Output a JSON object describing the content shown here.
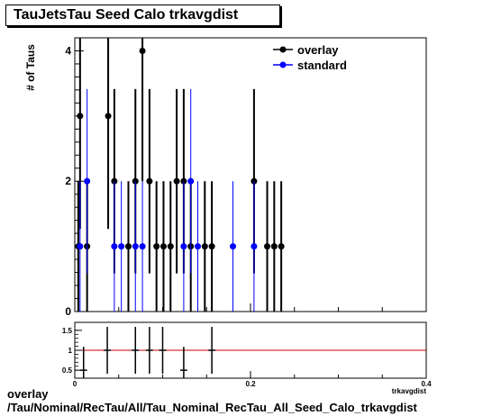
{
  "chart_data": {
    "type": "scatter",
    "title": "TauJetsTau Seed Calo trkavgdist",
    "ylabel": "# of Taus",
    "xlabel": "trkavgdist",
    "xlim": [
      0,
      0.4
    ],
    "ylim": [
      0,
      4.2
    ],
    "x_ticks": [
      "0",
      "0.2",
      "0.4"
    ],
    "y_ticks": [
      "0",
      "2",
      "4"
    ],
    "legend_position": "top-right",
    "series": [
      {
        "name": "overlay",
        "color": "#000000",
        "points": [
          {
            "x": 0.004,
            "y": 1
          },
          {
            "x": 0.006,
            "y": 3
          },
          {
            "x": 0.014,
            "y": 1
          },
          {
            "x": 0.038,
            "y": 3
          },
          {
            "x": 0.045,
            "y": 2
          },
          {
            "x": 0.061,
            "y": 1
          },
          {
            "x": 0.069,
            "y": 2
          },
          {
            "x": 0.077,
            "y": 4
          },
          {
            "x": 0.085,
            "y": 2
          },
          {
            "x": 0.093,
            "y": 1
          },
          {
            "x": 0.101,
            "y": 1
          },
          {
            "x": 0.109,
            "y": 1
          },
          {
            "x": 0.116,
            "y": 2
          },
          {
            "x": 0.124,
            "y": 2
          },
          {
            "x": 0.132,
            "y": 1
          },
          {
            "x": 0.148,
            "y": 1
          },
          {
            "x": 0.156,
            "y": 1
          },
          {
            "x": 0.204,
            "y": 2
          },
          {
            "x": 0.219,
            "y": 1
          },
          {
            "x": 0.227,
            "y": 1
          },
          {
            "x": 0.235,
            "y": 1
          }
        ]
      },
      {
        "name": "standard",
        "color": "#0000ff",
        "points": [
          {
            "x": 0.006,
            "y": 1
          },
          {
            "x": 0.014,
            "y": 2
          },
          {
            "x": 0.045,
            "y": 1
          },
          {
            "x": 0.053,
            "y": 1
          },
          {
            "x": 0.069,
            "y": 1
          },
          {
            "x": 0.077,
            "y": 1
          },
          {
            "x": 0.124,
            "y": 1
          },
          {
            "x": 0.132,
            "y": 2
          },
          {
            "x": 0.14,
            "y": 1
          },
          {
            "x": 0.18,
            "y": 1
          },
          {
            "x": 0.204,
            "y": 1
          }
        ]
      }
    ],
    "ratio_panel": {
      "ylim": [
        0.3,
        1.7
      ],
      "y_ticks": [
        "0.5",
        "1",
        "1.5"
      ],
      "x_ticks": [
        "0",
        "0.2",
        "0.4"
      ],
      "reference_line": 1,
      "reference_color": "#cc0000",
      "points": [
        {
          "x": 0.01,
          "y": 0.5,
          "xerr": 0.004
        },
        {
          "x": 0.037,
          "y": 1,
          "xerr": 0.004
        },
        {
          "x": 0.069,
          "y": 1,
          "xerr": 0.004
        },
        {
          "x": 0.085,
          "y": 1,
          "xerr": 0.004
        },
        {
          "x": 0.1,
          "y": 1,
          "xerr": 0.004
        },
        {
          "x": 0.124,
          "y": 0.5,
          "xerr": 0.004
        },
        {
          "x": 0.156,
          "y": 1,
          "xerr": 0.004
        }
      ]
    }
  },
  "caption": {
    "line1": "overlay",
    "line2": "/Tau/Nominal/RecTau/All/Tau_Nominal_RecTau_All_Seed_Calo_trkavgdist"
  }
}
